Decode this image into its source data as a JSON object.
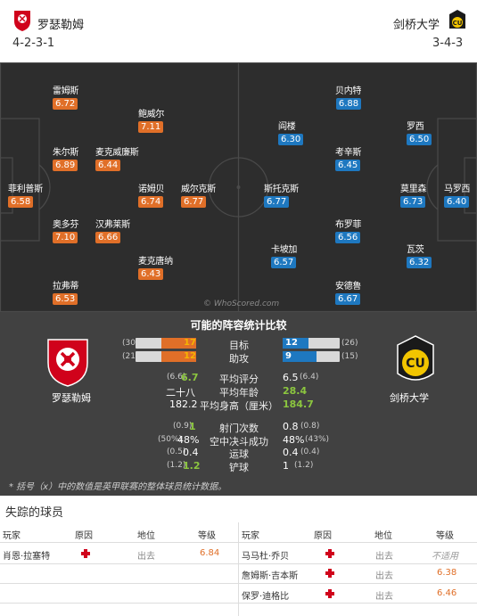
{
  "header": {
    "home_team": "罗瑟勒姆",
    "home_formation": "4-2-3-1",
    "away_team": "剑桥大学",
    "away_formation": "3-4-3",
    "home_color": "#d0021b",
    "away_color": "#f2c500"
  },
  "pitch": {
    "watermark": "© WhoScored.com",
    "home_players": [
      {
        "name": "雷姆斯",
        "rating": "6.72"
      },
      {
        "name": "鲍威尔",
        "rating": "7.11"
      },
      {
        "name": "朱尔斯",
        "rating": "6.89"
      },
      {
        "name": "麦克威廉斯",
        "rating": "6.44"
      },
      {
        "name": "菲利普斯",
        "rating": "6.58"
      },
      {
        "name": "诺姆贝",
        "rating": "6.74"
      },
      {
        "name": "威尔克斯",
        "rating": "6.77"
      },
      {
        "name": "奥多芬",
        "rating": "7.10"
      },
      {
        "name": "汉弗莱斯",
        "rating": "6.66"
      },
      {
        "name": "麦克唐纳",
        "rating": "6.43"
      },
      {
        "name": "拉弗蒂",
        "rating": "6.53"
      }
    ],
    "away_players": [
      {
        "name": "贝内特",
        "rating": "6.88"
      },
      {
        "name": "阎楼",
        "rating": "6.30"
      },
      {
        "name": "罗西",
        "rating": "6.50"
      },
      {
        "name": "考辛斯",
        "rating": "6.45"
      },
      {
        "name": "斯托克斯",
        "rating": "6.77"
      },
      {
        "name": "莫里森",
        "rating": "6.73"
      },
      {
        "name": "马罗西",
        "rating": "6.40"
      },
      {
        "name": "布罗菲",
        "rating": "6.56"
      },
      {
        "name": "卡坡加",
        "rating": "6.57"
      },
      {
        "name": "瓦茨",
        "rating": "6.32"
      },
      {
        "name": "安德鲁",
        "rating": "6.67"
      }
    ]
  },
  "compare": {
    "title": "可能的阵容统计比较",
    "home_name": "罗瑟勒姆",
    "away_name": "剑桥大学",
    "bars": [
      {
        "label": "目标",
        "home_avg": "(30)",
        "home": "17",
        "away": "12",
        "away_avg": "(26)",
        "home_frac": 0.57,
        "away_frac": 0.46
      },
      {
        "label": "助攻",
        "home_avg": "(21)",
        "home": "12",
        "away": "9",
        "away_avg": "(15)",
        "home_frac": 0.57,
        "away_frac": 0.6
      }
    ],
    "stats": [
      {
        "label": "平均评分",
        "home_avg": "(6.6)",
        "home": "6.7",
        "away": "6.5",
        "away_avg": "(6.4)",
        "winner": "home"
      },
      {
        "label": "平均年龄",
        "home_avg": "",
        "home": "二十八",
        "away": "28.4",
        "away_avg": "",
        "winner": "away"
      },
      {
        "label": "平均身高（厘米）",
        "home_avg": "",
        "home": "182.2",
        "away": "184.7",
        "away_avg": "",
        "winner": "away"
      },
      {
        "label": "射门次数",
        "home_avg": "(0.9)",
        "home": "1",
        "away": "0.8",
        "away_avg": "(0.8)",
        "winner": "home"
      },
      {
        "label": "空中决斗成功",
        "home_avg": "(50%)",
        "home": "48%",
        "away": "48%",
        "away_avg": "(43%)",
        "winner": "none"
      },
      {
        "label": "运球",
        "home_avg": "(0.5)",
        "home": "0.4",
        "away": "0.4",
        "away_avg": "(0.4)",
        "winner": "none"
      },
      {
        "label": "铲球",
        "home_avg": "(1.2)",
        "home": "1.2",
        "away": "1",
        "away_avg": "(1.2)",
        "winner": "home"
      }
    ],
    "footnote": "* 括号（x）中的数值是英甲联赛的整体球员统计数据。"
  },
  "missing": {
    "title": "失踪的球员",
    "headers": {
      "player": "玩家",
      "reason": "原因",
      "status": "地位",
      "rating": "等级"
    },
    "home_rows": [
      {
        "player": "肖恩·拉塞特",
        "status": "出去",
        "rating": "6.84"
      }
    ],
    "away_rows": [
      {
        "player": "马马杜·乔贝",
        "status": "出去",
        "rating": "不适用"
      },
      {
        "player": "詹姆斯·吉本斯",
        "status": "出去",
        "rating": "6.38"
      },
      {
        "player": "保罗·迪格比",
        "status": "出去",
        "rating": "6.46"
      }
    ]
  }
}
